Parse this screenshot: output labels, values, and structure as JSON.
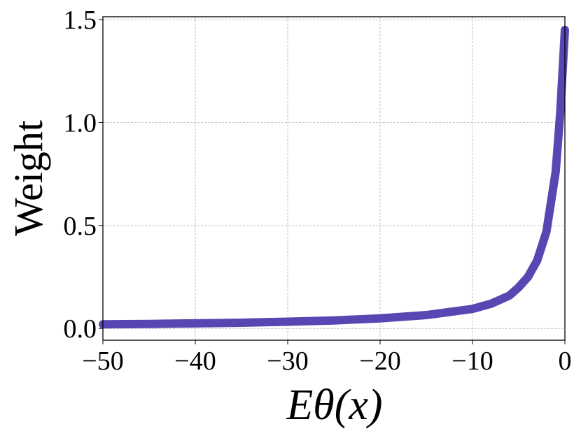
{
  "chart_data": {
    "type": "line",
    "x_label": "Eθ(x)",
    "y_label": "Weight",
    "x": [
      -50,
      -45,
      -40,
      -35,
      -30,
      -25,
      -20,
      -15,
      -10,
      -8,
      -6,
      -5,
      -4,
      -3,
      -2,
      -1,
      -0.5,
      0
    ],
    "series": [
      {
        "color": "#5a46b2",
        "values": [
          0.02,
          0.022,
          0.025,
          0.028,
          0.033,
          0.039,
          0.049,
          0.065,
          0.095,
          0.12,
          0.16,
          0.2,
          0.25,
          0.33,
          0.47,
          0.76,
          1.05,
          1.45
        ]
      }
    ],
    "xlim": [
      -50,
      0
    ],
    "ylim": [
      -0.057,
      1.514
    ],
    "xticks": [
      {
        "value": -50,
        "label": "−50"
      },
      {
        "value": -40,
        "label": "−40"
      },
      {
        "value": -30,
        "label": "−30"
      },
      {
        "value": -20,
        "label": "−20"
      },
      {
        "value": -10,
        "label": "−10"
      },
      0
    ],
    "yticks": [
      {
        "value": 0,
        "label": "0.0"
      },
      {
        "value": 0.5,
        "label": "0.5"
      },
      {
        "value": 1,
        "label": "1.0"
      },
      {
        "value": 1.5,
        "label": "1.5"
      }
    ],
    "grid": true
  }
}
